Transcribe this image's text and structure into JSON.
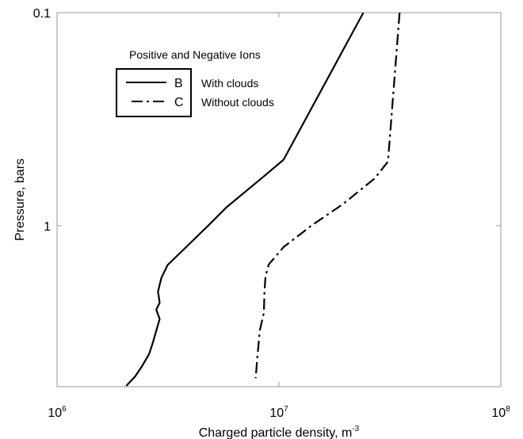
{
  "chart_data": {
    "type": "line",
    "title": "Positive and Negative Ions",
    "xlabel": "Charged particle density, m",
    "xlabel_sup": "-3",
    "ylabel": "Pressure, bars",
    "x_scale": "log",
    "y_scale": "log",
    "y_inverted": true,
    "xlim": [
      1000000,
      100000000
    ],
    "ylim": [
      0.1,
      5.7
    ],
    "x_ticks": [
      {
        "value": 1000000,
        "base": "10",
        "exp": "6"
      },
      {
        "value": 10000000,
        "base": "10",
        "exp": "7"
      },
      {
        "value": 100000000,
        "base": "10",
        "exp": "8"
      }
    ],
    "y_ticks": [
      {
        "value": 0.1,
        "label": "0.1"
      },
      {
        "value": 1,
        "label": "1"
      }
    ],
    "grid": false,
    "legend_position": "top-left",
    "series": [
      {
        "letter": "B",
        "name": "With clouds",
        "line_style": "solid",
        "color": "#000000",
        "points": [
          [
            24000000,
            0.1
          ],
          [
            10500000,
            0.49
          ],
          [
            8500000,
            0.59
          ],
          [
            5800000,
            0.82
          ],
          [
            4800000,
            1.0
          ],
          [
            3150000,
            1.53
          ],
          [
            2950000,
            1.76
          ],
          [
            2850000,
            2.04
          ],
          [
            2900000,
            2.3
          ],
          [
            2800000,
            2.48
          ],
          [
            2900000,
            2.74
          ],
          [
            2700000,
            3.55
          ],
          [
            2600000,
            4.0
          ],
          [
            2420000,
            4.55
          ],
          [
            2250000,
            5.1
          ],
          [
            2050000,
            5.65
          ]
        ]
      },
      {
        "letter": "C",
        "name": "Without clouds",
        "line_style": "dash-dot",
        "color": "#000000",
        "points": [
          [
            35000000,
            0.1
          ],
          [
            31000000,
            0.5
          ],
          [
            27000000,
            0.6
          ],
          [
            19500000,
            0.79
          ],
          [
            14000000,
            1.0
          ],
          [
            10500000,
            1.26
          ],
          [
            9000000,
            1.52
          ],
          [
            8700000,
            1.72
          ],
          [
            8600000,
            2.06
          ],
          [
            8550000,
            2.56
          ],
          [
            8200000,
            3.1
          ],
          [
            8000000,
            4.1
          ],
          [
            7850000,
            5.2
          ]
        ]
      }
    ]
  }
}
